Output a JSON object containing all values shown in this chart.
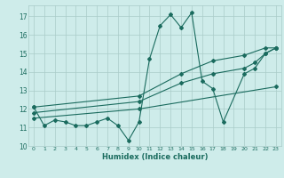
{
  "xlabel": "Humidex (Indice chaleur)",
  "background_color": "#ceecea",
  "grid_color": "#aaccc8",
  "line_color": "#1a6b5e",
  "xlim": [
    -0.5,
    23.5
  ],
  "ylim": [
    10.0,
    17.6
  ],
  "yticks": [
    10,
    11,
    12,
    13,
    14,
    15,
    16,
    17
  ],
  "xticks": [
    0,
    1,
    2,
    3,
    4,
    5,
    6,
    7,
    8,
    9,
    10,
    11,
    12,
    13,
    14,
    15,
    16,
    17,
    18,
    19,
    20,
    21,
    22,
    23
  ],
  "series": [
    {
      "x": [
        0,
        1,
        2,
        3,
        4,
        5,
        6,
        7,
        8,
        9,
        10,
        11,
        12,
        13,
        14,
        15,
        16,
        17,
        18,
        20,
        21,
        22,
        23
      ],
      "y": [
        12.1,
        11.1,
        11.4,
        11.3,
        11.1,
        11.1,
        11.3,
        11.5,
        11.1,
        10.3,
        11.3,
        14.7,
        16.5,
        17.1,
        16.4,
        17.2,
        13.5,
        13.1,
        11.3,
        13.9,
        14.2,
        15.0,
        15.3
      ]
    },
    {
      "x": [
        0,
        10,
        23
      ],
      "y": [
        11.5,
        12.0,
        13.2
      ]
    },
    {
      "x": [
        0,
        10,
        14,
        17,
        20,
        21,
        22,
        23
      ],
      "y": [
        11.8,
        12.4,
        13.4,
        13.9,
        14.2,
        14.5,
        15.0,
        15.3
      ]
    },
    {
      "x": [
        0,
        10,
        14,
        17,
        20,
        22,
        23
      ],
      "y": [
        12.1,
        12.7,
        13.9,
        14.6,
        14.9,
        15.3,
        15.3
      ]
    }
  ]
}
